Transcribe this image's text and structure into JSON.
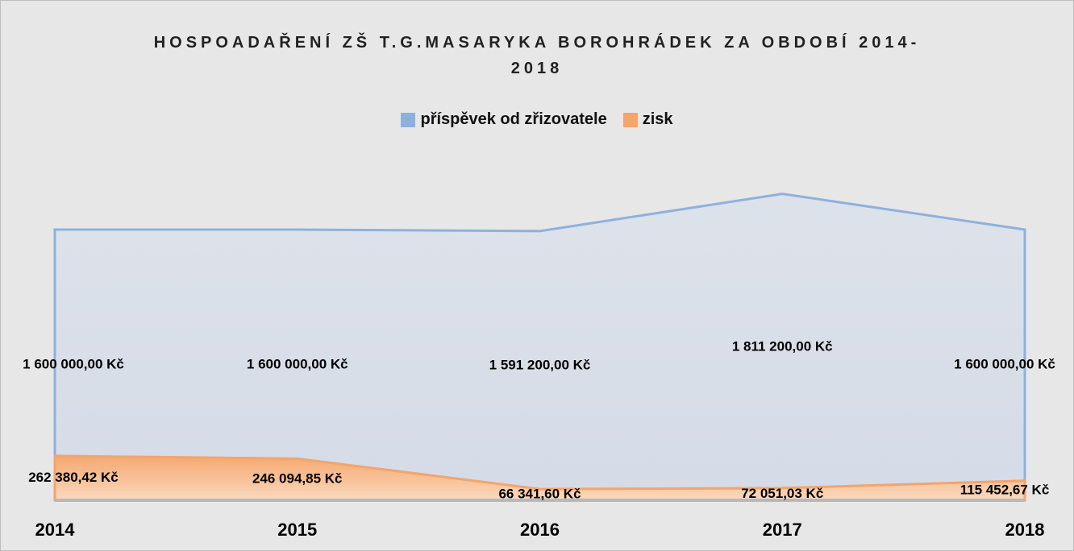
{
  "chart_data": {
    "type": "area",
    "title": "HOSPOADAŘENÍ ZŠ T.G.MASARYKA BOROHRÁDEK ZA OBDOBÍ 2014-2018",
    "categories": [
      "2014",
      "2015",
      "2016",
      "2017",
      "2018"
    ],
    "series": [
      {
        "name": "příspěvek od zřizovatele",
        "color": "#8eb1dc",
        "values": [
          1600000,
          1600000,
          1591200,
          1811200,
          1600000
        ],
        "value_labels": [
          "1 600 000,00 Kč",
          "1 600 000,00 Kč",
          "1 591 200,00 Kč",
          "1 811 200,00 Kč",
          "1 600 000,00 Kč"
        ]
      },
      {
        "name": "zisk",
        "color": "#f2a56c",
        "values": [
          262380.42,
          246094.85,
          66341.6,
          72051.03,
          115452.67
        ],
        "value_labels": [
          "262 380,42 Kč",
          "246 094,85 Kč",
          "66 341,60 Kč",
          "72 051,03 Kč",
          "115 452,67 Kč"
        ]
      }
    ],
    "ylim": [
      0,
      2000000
    ],
    "legend": "top"
  }
}
